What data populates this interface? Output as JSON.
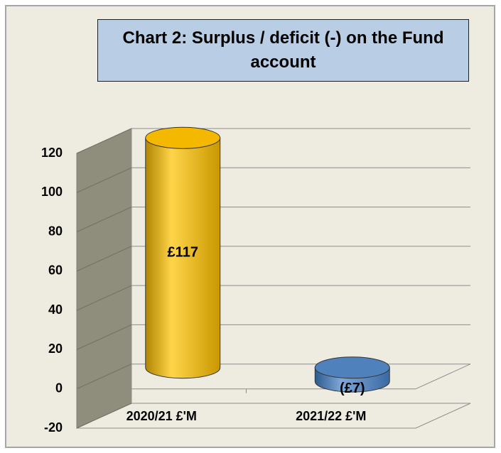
{
  "chart_data": {
    "type": "bar",
    "title": "Chart 2: Surplus / deficit (-) on the Fund account",
    "categories": [
      "2020/21 £'M",
      "2021/22 £'M"
    ],
    "values": [
      117,
      -7
    ],
    "value_labels": [
      "£117",
      "(£7)"
    ],
    "colors": [
      "#f5b800",
      "#4f81bd"
    ],
    "ylim": [
      -20,
      120
    ],
    "yticks": [
      -20,
      0,
      20,
      40,
      60,
      80,
      100,
      120
    ],
    "grid": true
  }
}
